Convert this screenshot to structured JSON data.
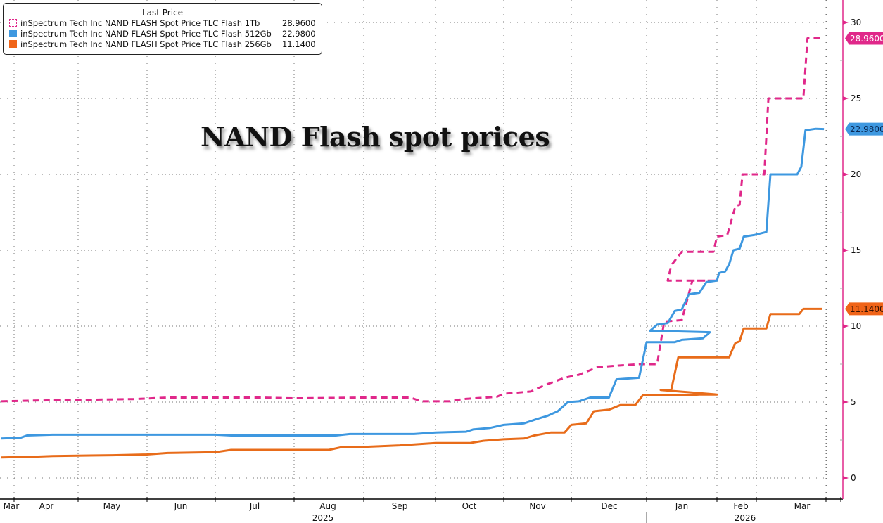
{
  "chart_data": {
    "type": "line",
    "title": "NAND Flash spot prices",
    "xlabel": "",
    "ylabel": "",
    "ylim": [
      -1.5,
      31.5
    ],
    "yticks": [
      0,
      5,
      10,
      15,
      20,
      25,
      30
    ],
    "grid": true,
    "legend_position": "top-left",
    "legend_title": "Last Price",
    "x_unit": "months since 2025-03-01",
    "month_ticks": [
      {
        "label": "Mar",
        "x": 0
      },
      {
        "label": "Apr",
        "x": 1
      },
      {
        "label": "May",
        "x": 2
      },
      {
        "label": "Jun",
        "x": 3
      },
      {
        "label": "Jul",
        "x": 4
      },
      {
        "label": "Aug",
        "x": 5
      },
      {
        "label": "Sep",
        "x": 6
      },
      {
        "label": "Oct",
        "x": 7
      },
      {
        "label": "Nov",
        "x": 8
      },
      {
        "label": "Dec",
        "x": 9
      },
      {
        "label": "Jan",
        "x": 10
      },
      {
        "label": "Feb",
        "x": 11
      },
      {
        "label": "Mar",
        "x": 12
      }
    ],
    "year_labels": [
      {
        "label": "2025",
        "x": 5.4
      },
      {
        "label": "2026",
        "x": 11.05
      }
    ],
    "series": [
      {
        "name": "inSpectrum Tech Inc NAND FLASH Spot Price TLC Flash 1Tb",
        "last_value": "28.9600",
        "color": "#e0288a",
        "style": "dashed",
        "points": [
          [
            -0.2,
            5.05
          ],
          [
            0.3,
            5.1
          ],
          [
            1.0,
            5.15
          ],
          [
            1.8,
            5.2
          ],
          [
            2.3,
            5.3
          ],
          [
            3.0,
            5.3
          ],
          [
            3.6,
            5.3
          ],
          [
            4.0,
            5.25
          ],
          [
            5.0,
            5.3
          ],
          [
            5.65,
            5.3
          ],
          [
            5.8,
            5.05
          ],
          [
            6.2,
            5.05
          ],
          [
            6.4,
            5.2
          ],
          [
            6.9,
            5.35
          ],
          [
            7.0,
            5.55
          ],
          [
            7.4,
            5.7
          ],
          [
            7.6,
            6.1
          ],
          [
            7.9,
            6.6
          ],
          [
            8.1,
            6.8
          ],
          [
            8.35,
            7.3
          ],
          [
            8.6,
            7.4
          ],
          [
            8.9,
            7.5
          ],
          [
            9.15,
            7.5
          ],
          [
            9.25,
            10.3
          ],
          [
            9.5,
            10.4
          ],
          [
            9.65,
            13.0
          ],
          [
            10.0,
            13.0
          ],
          [
            10.3,
            13.0
          ],
          [
            10.35,
            14.0
          ],
          [
            10.5,
            14.9
          ],
          [
            10.95,
            14.9
          ],
          [
            11.0,
            15.9
          ],
          [
            11.25,
            16.0
          ],
          [
            11.45,
            17.9
          ],
          [
            11.55,
            18.0
          ],
          [
            11.62,
            20.0
          ],
          [
            12.15,
            20.0
          ],
          [
            12.25,
            25.0
          ],
          [
            13.1,
            25.0
          ],
          [
            13.2,
            28.96
          ],
          [
            13.6,
            28.96
          ]
        ]
      },
      {
        "name": "inSpectrum Tech Inc NAND FLASH Spot Price TLC Flash 512Gb",
        "last_value": "22.9800",
        "color": "#3e98e0",
        "style": "solid",
        "points": [
          [
            -0.2,
            2.6
          ],
          [
            0.1,
            2.65
          ],
          [
            0.2,
            2.8
          ],
          [
            0.6,
            2.85
          ],
          [
            3.0,
            2.85
          ],
          [
            3.2,
            2.8
          ],
          [
            4.6,
            2.8
          ],
          [
            4.8,
            2.9
          ],
          [
            5.7,
            2.9
          ],
          [
            6.0,
            3.0
          ],
          [
            6.45,
            3.05
          ],
          [
            6.55,
            3.2
          ],
          [
            6.8,
            3.3
          ],
          [
            7.0,
            3.5
          ],
          [
            7.3,
            3.6
          ],
          [
            7.5,
            3.9
          ],
          [
            7.65,
            4.1
          ],
          [
            7.8,
            4.4
          ],
          [
            7.95,
            5.0
          ],
          [
            8.1,
            5.05
          ],
          [
            8.25,
            5.3
          ],
          [
            8.5,
            5.3
          ],
          [
            8.6,
            6.5
          ],
          [
            8.9,
            6.6
          ],
          [
            9.0,
            8.95
          ],
          [
            9.4,
            8.95
          ],
          [
            9.5,
            9.1
          ],
          [
            9.8,
            9.2
          ],
          [
            9.9,
            9.6
          ],
          [
            10.05,
            9.7
          ],
          [
            10.15,
            10.1
          ],
          [
            10.3,
            10.2
          ],
          [
            10.4,
            11.0
          ],
          [
            10.5,
            11.1
          ],
          [
            10.6,
            12.1
          ],
          [
            10.75,
            12.2
          ],
          [
            10.85,
            12.9
          ],
          [
            11.0,
            13.0
          ],
          [
            11.05,
            13.5
          ],
          [
            11.2,
            13.6
          ],
          [
            11.3,
            14.1
          ],
          [
            11.4,
            15.0
          ],
          [
            11.55,
            15.1
          ],
          [
            11.65,
            15.9
          ],
          [
            11.9,
            16.0
          ],
          [
            12.2,
            16.2
          ],
          [
            12.3,
            20.0
          ],
          [
            12.95,
            20.0
          ],
          [
            13.05,
            20.5
          ],
          [
            13.15,
            22.9
          ],
          [
            13.4,
            23.0
          ],
          [
            13.6,
            22.98
          ]
        ]
      },
      {
        "name": "inSpectrum Tech Inc NAND FLASH Spot Price TLC Flash 256Gb",
        "last_value": "11.1400",
        "color": "#e86c1a",
        "style": "solid",
        "points": [
          [
            -0.2,
            1.35
          ],
          [
            0.3,
            1.4
          ],
          [
            0.6,
            1.45
          ],
          [
            1.5,
            1.5
          ],
          [
            2.0,
            1.55
          ],
          [
            2.3,
            1.65
          ],
          [
            3.0,
            1.7
          ],
          [
            3.2,
            1.85
          ],
          [
            4.0,
            1.85
          ],
          [
            4.5,
            1.85
          ],
          [
            4.7,
            2.05
          ],
          [
            5.0,
            2.05
          ],
          [
            5.5,
            2.15
          ],
          [
            6.0,
            2.3
          ],
          [
            6.5,
            2.3
          ],
          [
            6.7,
            2.45
          ],
          [
            7.0,
            2.55
          ],
          [
            7.3,
            2.6
          ],
          [
            7.45,
            2.8
          ],
          [
            7.7,
            3.0
          ],
          [
            7.9,
            3.0
          ],
          [
            8.0,
            3.5
          ],
          [
            8.2,
            3.6
          ],
          [
            8.3,
            4.4
          ],
          [
            8.5,
            4.5
          ],
          [
            8.65,
            4.8
          ],
          [
            8.85,
            4.8
          ],
          [
            8.95,
            5.45
          ],
          [
            9.6,
            5.45
          ],
          [
            9.75,
            5.5
          ],
          [
            10.0,
            5.5
          ],
          [
            10.2,
            5.8
          ],
          [
            10.35,
            5.8
          ],
          [
            10.45,
            7.95
          ],
          [
            11.3,
            7.95
          ],
          [
            11.35,
            8.3
          ],
          [
            11.45,
            8.9
          ],
          [
            11.55,
            9.0
          ],
          [
            11.65,
            9.85
          ],
          [
            12.2,
            9.85
          ],
          [
            12.3,
            10.8
          ],
          [
            13.0,
            10.8
          ],
          [
            13.1,
            11.14
          ],
          [
            13.55,
            11.14
          ]
        ]
      }
    ]
  }
}
